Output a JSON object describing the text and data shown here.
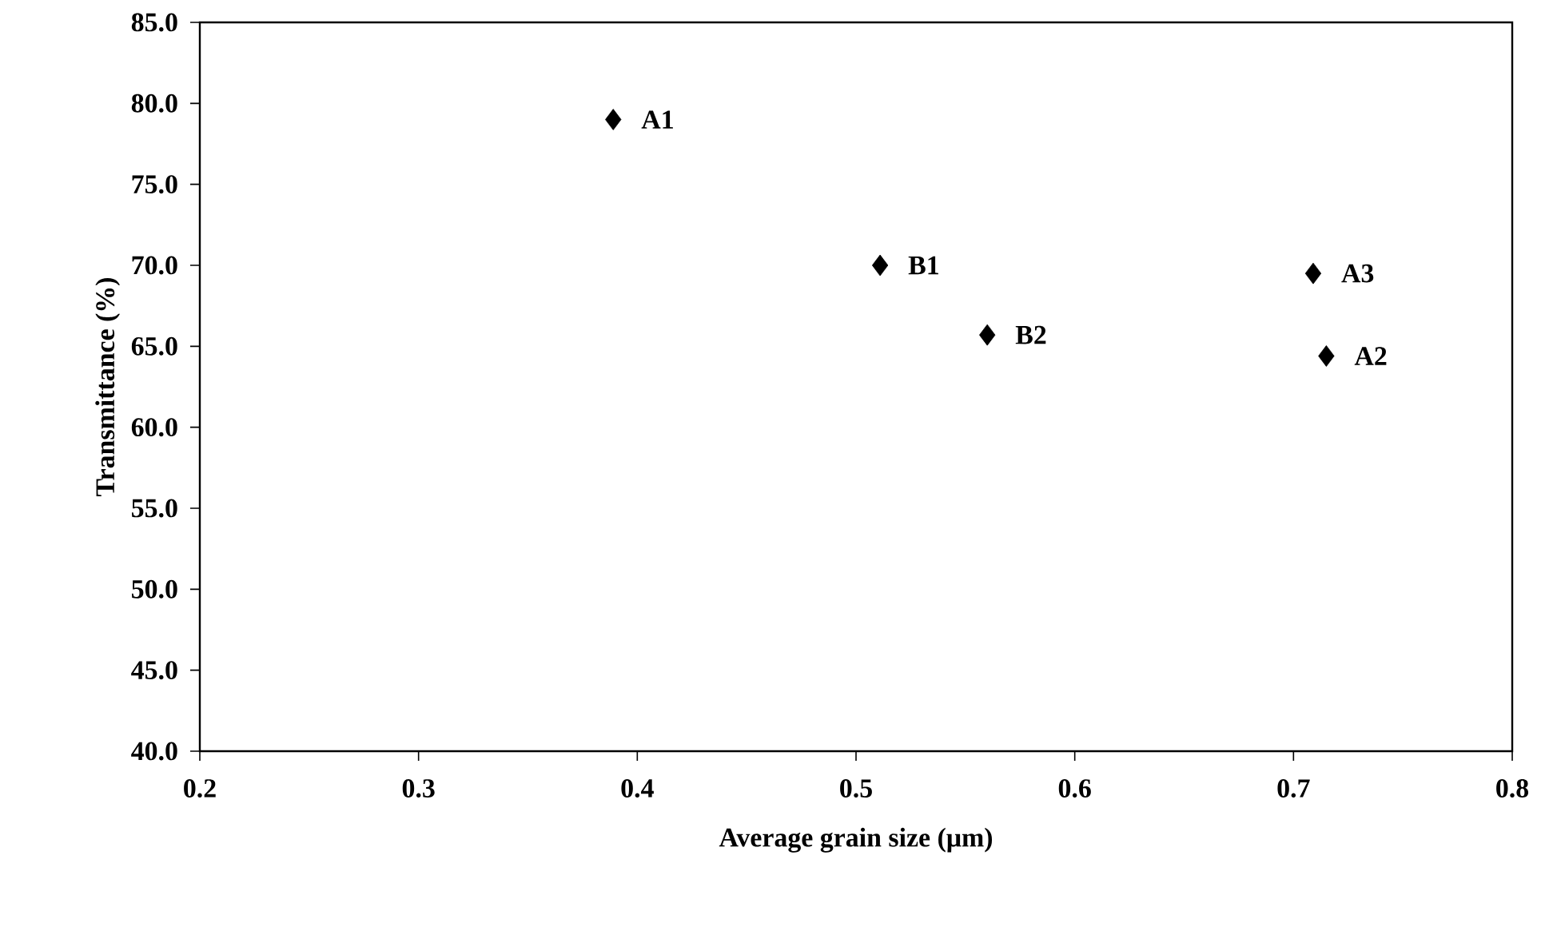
{
  "chart_data": {
    "type": "scatter",
    "xlabel": "Average grain size (μm)",
    "ylabel": "Transmittance (%)",
    "series": [
      {
        "color": "#000000",
        "x": [
          0.389,
          0.511,
          0.56,
          0.709,
          0.715
        ],
        "values": [
          79.0,
          70.0,
          65.7,
          69.5,
          64.4
        ]
      }
    ],
    "marker": "diamond",
    "xlim": [
      0.2,
      0.8
    ],
    "xticks": [
      0.2,
      0.3,
      0.4,
      0.5,
      0.6,
      0.7,
      0.8
    ],
    "ylim": [
      40,
      85
    ],
    "yticks": [
      {
        "value": 40,
        "label": "40.0"
      },
      {
        "value": 45,
        "label": "45.0"
      },
      {
        "value": 50,
        "label": "50.0"
      },
      {
        "value": 55,
        "label": "55.0"
      },
      {
        "value": 60,
        "label": "60.0"
      },
      {
        "value": 65,
        "label": "65.0"
      },
      {
        "value": 70,
        "label": "70.0"
      },
      {
        "value": 75,
        "label": "75.0"
      },
      {
        "value": 80,
        "label": "80.0"
      },
      {
        "value": 85,
        "label": "85.0"
      }
    ],
    "annotations": [
      {
        "text": "A1",
        "x": 0.389,
        "y": 79.0
      },
      {
        "text": "B1",
        "x": 0.511,
        "y": 70.0
      },
      {
        "text": "B2",
        "x": 0.56,
        "y": 65.7
      },
      {
        "text": "A3",
        "x": 0.709,
        "y": 69.5
      },
      {
        "text": "A2",
        "x": 0.715,
        "y": 64.4
      }
    ]
  }
}
